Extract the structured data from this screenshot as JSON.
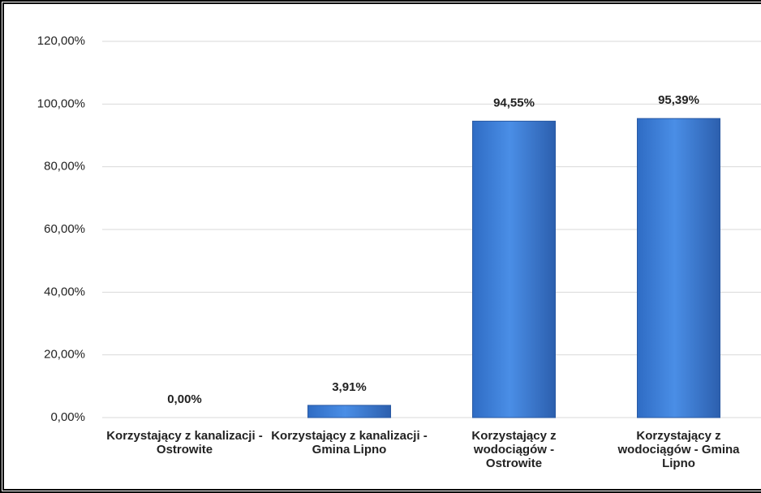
{
  "chart_data": {
    "type": "bar",
    "categories": [
      "Korzystający z kanalizacji - Ostrowite",
      "Korzystający z kanalizacji - Gmina Lipno",
      "Korzystający z wodociągów - Ostrowite",
      "Korzystający z wodociągów - Gmina Lipno"
    ],
    "values": [
      0,
      3.91,
      94.55,
      95.39
    ],
    "value_labels": [
      "0,00%",
      "3,91%",
      "94,55%",
      "95,39%"
    ],
    "color": "#3a7bd5",
    "ylim": [
      0,
      120
    ],
    "yticks": [
      {
        "value": 0,
        "label": "0,00%"
      },
      {
        "value": 20,
        "label": "20,00%"
      },
      {
        "value": 40,
        "label": "40,00%"
      },
      {
        "value": 60,
        "label": "60,00%"
      },
      {
        "value": 80,
        "label": "80,00%"
      },
      {
        "value": 100,
        "label": "100,00%"
      },
      {
        "value": 120,
        "label": "120,00%"
      }
    ],
    "grid": true
  }
}
